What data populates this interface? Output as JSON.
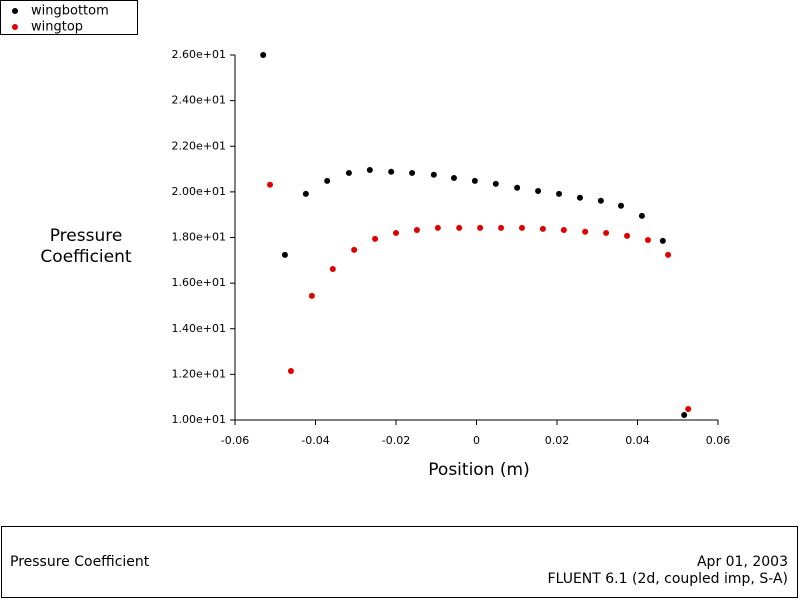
{
  "chart_data": {
    "type": "scatter",
    "title": "Pressure Coefficient",
    "date": "Apr 01, 2003",
    "subtitle": "FLUENT 6.1 (2d, coupled imp, S-A)",
    "x_label": "Position (m)",
    "y_label": "Pressure Coefficient",
    "xlim": [
      -0.06,
      0.06
    ],
    "ylim": [
      10,
      26
    ],
    "xticks": [
      -0.06,
      -0.04,
      -0.02,
      0,
      0.02,
      0.04,
      0.06
    ],
    "yticks": [
      {
        "value": 10,
        "label": "1.00e+01"
      },
      {
        "value": 12,
        "label": "1.20e+01"
      },
      {
        "value": 14,
        "label": "1.40e+01"
      },
      {
        "value": 16,
        "label": "1.60e+01"
      },
      {
        "value": 18,
        "label": "1.80e+01"
      },
      {
        "value": 20,
        "label": "2.00e+01"
      },
      {
        "value": 22,
        "label": "2.20e+01"
      },
      {
        "value": 24,
        "label": "2.40e+01"
      },
      {
        "value": 26,
        "label": "2.60e+01"
      }
    ],
    "legend": "top-left",
    "series": [
      {
        "name": "wingbottom",
        "color": "#000000",
        "x": [
          -0.053,
          -0.0476,
          -0.0424,
          -0.0371,
          -0.0317,
          -0.0265,
          -0.0212,
          -0.016,
          -0.0106,
          -0.0056,
          -0.0004,
          0.0048,
          0.0101,
          0.0153,
          0.0205,
          0.0257,
          0.0309,
          0.0359,
          0.0411,
          0.0463,
          0.0516
        ],
        "values": [
          26.0,
          17.24,
          19.91,
          20.48,
          20.83,
          20.96,
          20.88,
          20.83,
          20.75,
          20.61,
          20.48,
          20.35,
          20.18,
          20.04,
          19.91,
          19.74,
          19.61,
          19.39,
          18.95,
          17.85,
          10.22
        ]
      },
      {
        "name": "wingtop",
        "color": "#e00000",
        "x": [
          -0.0513,
          -0.0461,
          -0.0409,
          -0.0357,
          -0.0304,
          -0.0252,
          -0.02,
          -0.0148,
          -0.0096,
          -0.0043,
          0.0009,
          0.0061,
          0.0113,
          0.0165,
          0.0217,
          0.027,
          0.0322,
          0.0374,
          0.0426,
          0.0476,
          0.0526
        ],
        "values": [
          20.31,
          12.15,
          15.44,
          16.62,
          17.46,
          17.94,
          18.2,
          18.33,
          18.42,
          18.42,
          18.42,
          18.42,
          18.42,
          18.38,
          18.33,
          18.25,
          18.2,
          18.07,
          17.89,
          17.24,
          10.48
        ]
      }
    ]
  }
}
